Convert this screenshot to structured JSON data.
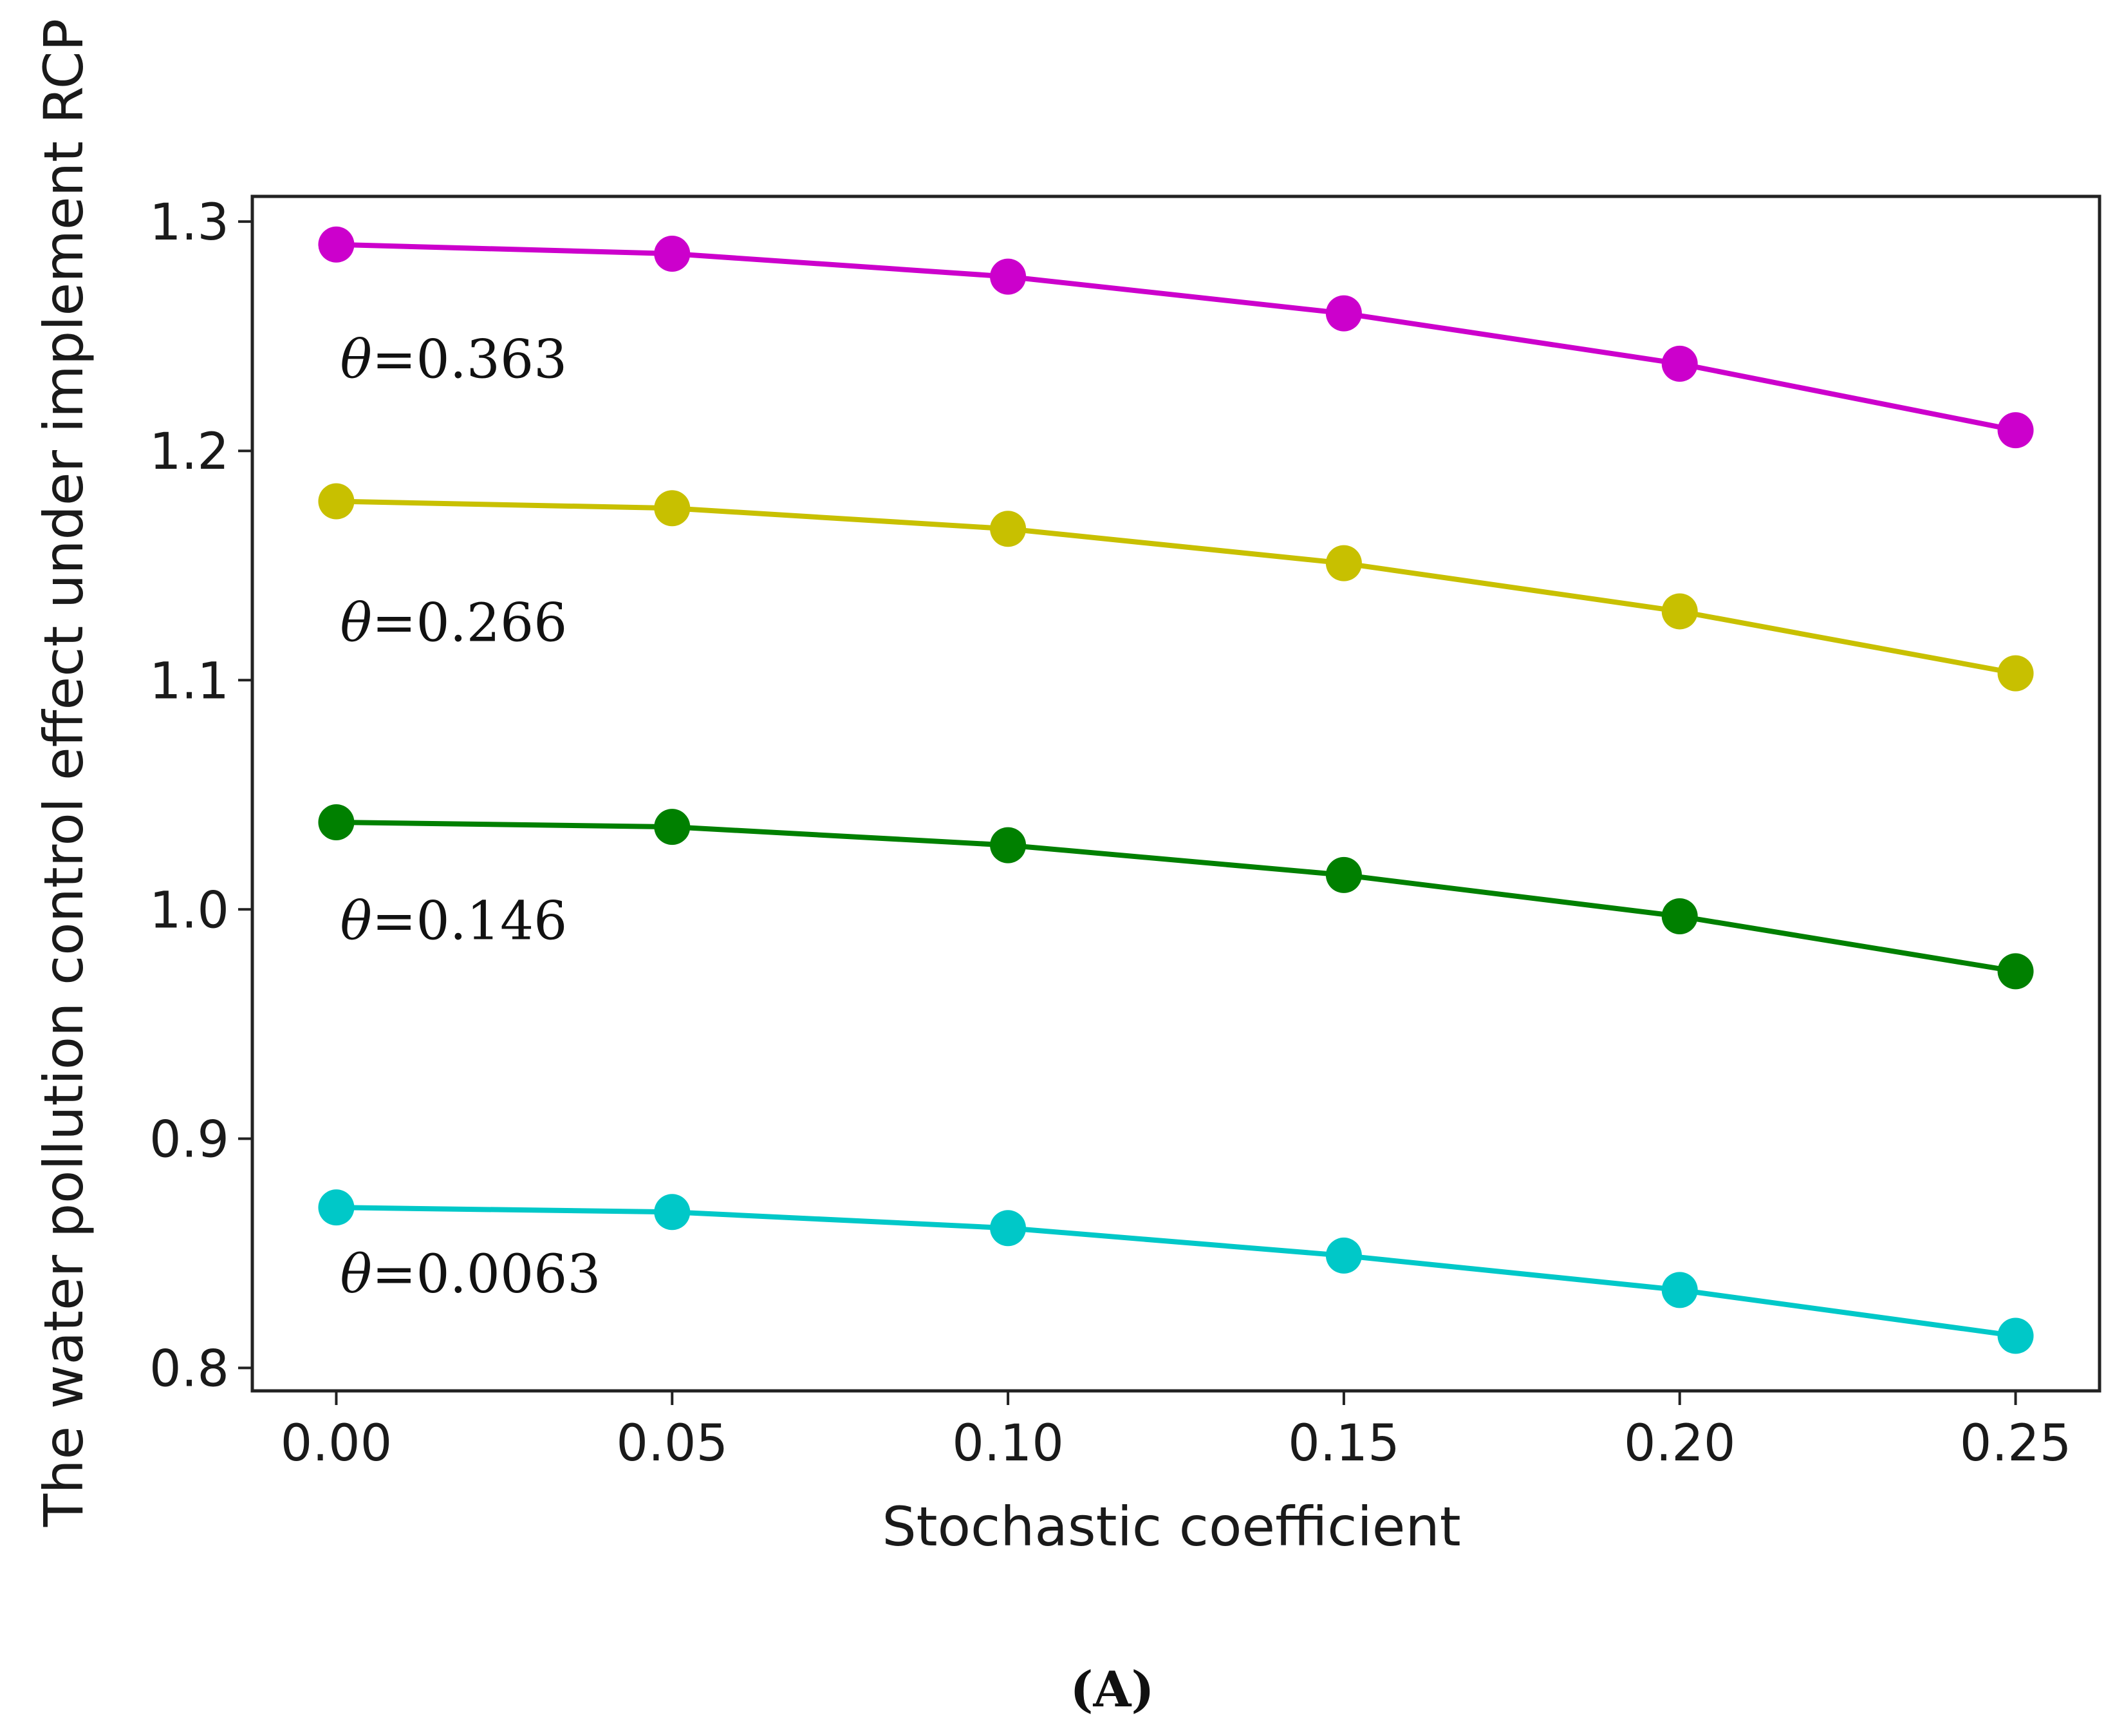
{
  "chart_data": {
    "type": "line",
    "title": "",
    "xlabel": "Stochastic coefficient",
    "ylabel": "The water pollution control effect under implement RCP",
    "x": [
      0.0,
      0.05,
      0.1,
      0.15,
      0.2,
      0.25
    ],
    "x_tick_labels": [
      "0.00",
      "0.05",
      "0.10",
      "0.15",
      "0.20",
      "0.25"
    ],
    "y_ticks": [
      0.8,
      0.9,
      1.0,
      1.1,
      1.2,
      1.3
    ],
    "y_tick_labels": [
      "0.8",
      "0.9",
      "1.0",
      "1.1",
      "1.2",
      "1.3"
    ],
    "xlim": [
      -0.0125,
      0.2625
    ],
    "ylim": [
      0.79,
      1.311
    ],
    "grid": false,
    "series": [
      {
        "name": "θ=0.363",
        "label_prefix": "θ",
        "label_value": "=0.363",
        "color": "#cc00cc",
        "label_x": 0.0,
        "label_y": 1.232,
        "values": [
          1.29,
          1.286,
          1.276,
          1.26,
          1.238,
          1.209
        ]
      },
      {
        "name": "θ=0.266",
        "label_prefix": "θ",
        "label_value": "=0.266",
        "color": "#c8c000",
        "label_x": 0.0,
        "label_y": 1.117,
        "values": [
          1.178,
          1.175,
          1.166,
          1.151,
          1.13,
          1.103
        ]
      },
      {
        "name": "θ=0.146",
        "label_prefix": "θ",
        "label_value": "=0.146",
        "color": "#008000",
        "label_x": 0.0,
        "label_y": 0.987,
        "values": [
          1.038,
          1.036,
          1.028,
          1.015,
          0.997,
          0.973
        ]
      },
      {
        "name": "θ=0.0063",
        "label_prefix": "θ",
        "label_value": "=0.0063",
        "color": "#00c8c8",
        "label_x": 0.0,
        "label_y": 0.833,
        "values": [
          0.87,
          0.868,
          0.861,
          0.849,
          0.834,
          0.814
        ]
      }
    ]
  },
  "caption": "(A)"
}
